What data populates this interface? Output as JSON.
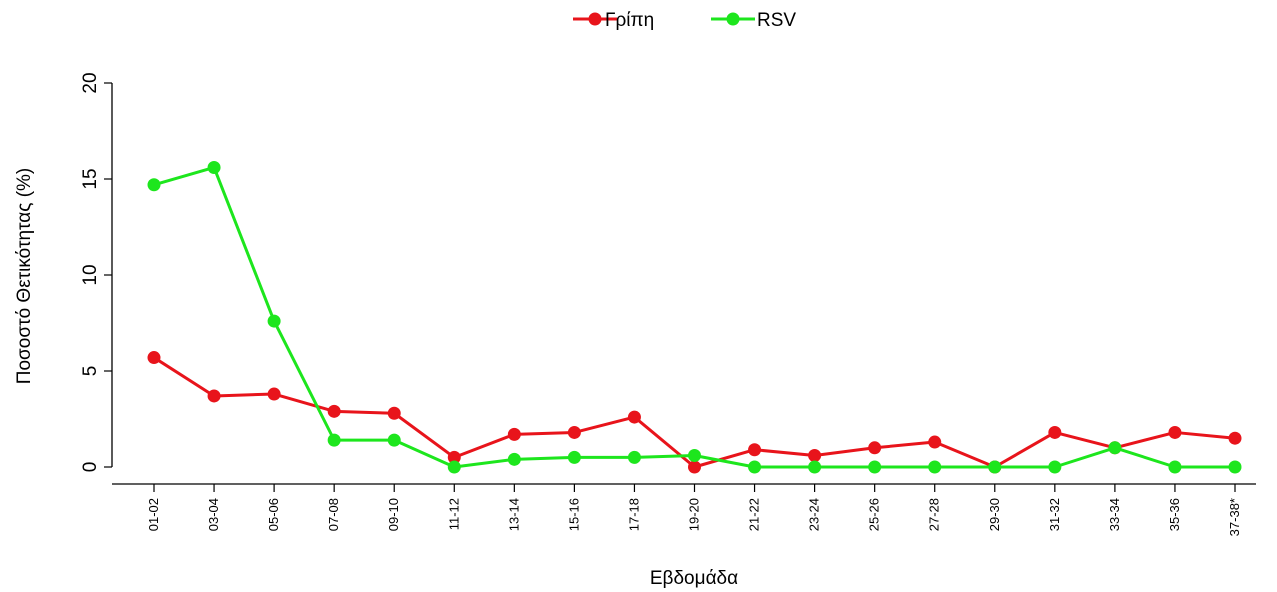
{
  "chart_data": {
    "type": "line",
    "xlabel": "Εβδομάδα",
    "ylabel": "Ποσοστό Θετικότητας (%)",
    "ylim": [
      0,
      20
    ],
    "yticks": [
      0,
      5,
      10,
      15,
      20
    ],
    "grid": false,
    "legend_position": "top-center",
    "categories": [
      "01-02",
      "03-04",
      "05-06",
      "07-08",
      "09-10",
      "11-12",
      "13-14",
      "15-16",
      "17-18",
      "19-20",
      "21-22",
      "23-24",
      "25-26",
      "27-28",
      "29-30",
      "31-32",
      "33-34",
      "35-36",
      "37-38*"
    ],
    "series": [
      {
        "name": "Γρίπη",
        "color": "#e8141b",
        "values": [
          5.7,
          3.7,
          3.8,
          2.9,
          2.8,
          0.5,
          1.7,
          1.8,
          2.6,
          0.0,
          0.9,
          0.6,
          1.0,
          1.3,
          0.0,
          1.8,
          1.0,
          1.8,
          1.5
        ]
      },
      {
        "name": "RSV",
        "color": "#1de61d",
        "values": [
          14.7,
          15.6,
          7.6,
          1.4,
          1.4,
          0.0,
          0.4,
          0.5,
          0.5,
          0.6,
          0.0,
          0.0,
          0.0,
          0.0,
          0.0,
          0.0,
          1.0,
          0.0,
          0.0
        ]
      }
    ]
  }
}
